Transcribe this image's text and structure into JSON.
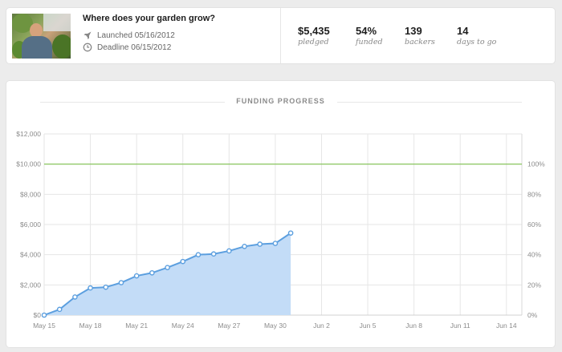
{
  "project": {
    "title": "Where does your garden grow?",
    "launched": "Launched 05/16/2012",
    "deadline": "Deadline 06/15/2012"
  },
  "stats": [
    {
      "value": "$5,435",
      "label": "pledged"
    },
    {
      "value": "54%",
      "label": "funded"
    },
    {
      "value": "139",
      "label": "backers"
    },
    {
      "value": "14",
      "label": "days to go"
    }
  ],
  "chart_section": {
    "heading": "FUNDING PROGRESS"
  },
  "colors": {
    "fill": "#c3dcf7",
    "line": "#5c9fdf",
    "goal": "#7fc14f",
    "grid": "#e6e6e6"
  },
  "icons": {
    "launched": "rocket-icon",
    "deadline": "clock-icon"
  },
  "chart_data": {
    "type": "area",
    "title": "",
    "xlabel": "",
    "ylabel": "",
    "x_ticks": [
      "May 15",
      "May 18",
      "May 21",
      "May 24",
      "May 27",
      "May 30",
      "Jun 2",
      "Jun 5",
      "Jun 8",
      "Jun 11",
      "Jun 14"
    ],
    "y_ticks_left": [
      "$0",
      "$2,000",
      "$4,000",
      "$6,000",
      "$8,000",
      "$10,000",
      "$12,000"
    ],
    "y_ticks_right": [
      "0%",
      "20%",
      "40%",
      "60%",
      "80%",
      "100%"
    ],
    "ylim": [
      0,
      12000
    ],
    "goal": 10000,
    "x_start": "May 15",
    "x_end": "Jun 15",
    "series": [
      {
        "x": [
          "May 15",
          "May 16",
          "May 17",
          "May 18",
          "May 19",
          "May 20",
          "May 21",
          "May 22",
          "May 23",
          "May 24",
          "May 25",
          "May 26",
          "May 27",
          "May 28",
          "May 29",
          "May 30",
          "May 31"
        ],
        "values": [
          0,
          380,
          1200,
          1800,
          1850,
          2150,
          2600,
          2800,
          3150,
          3550,
          4000,
          4050,
          4250,
          4550,
          4700,
          4750,
          5435
        ]
      }
    ]
  }
}
